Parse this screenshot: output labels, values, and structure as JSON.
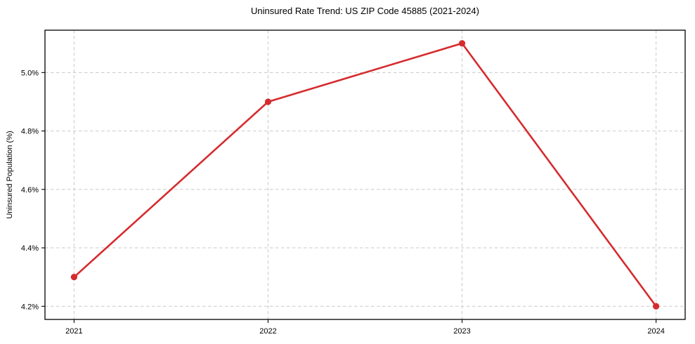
{
  "chart_data": {
    "type": "line",
    "title": "Uninsured Rate Trend: US ZIP Code 45885 (2021-2024)",
    "xlabel": "",
    "ylabel": "Uninsured Population (%)",
    "x": [
      2021,
      2022,
      2023,
      2024
    ],
    "values": [
      4.3,
      4.9,
      5.1,
      4.2
    ],
    "xticks": [
      2021,
      2022,
      2023,
      2024
    ],
    "xtick_labels": [
      "2021",
      "2022",
      "2023",
      "2024"
    ],
    "yticks": [
      4.2,
      4.4,
      4.6,
      4.8,
      5.0
    ],
    "ytick_labels": [
      "4.2%",
      "4.4%",
      "4.6%",
      "4.8%",
      "5.0%"
    ],
    "xlim": [
      2020.85,
      2024.15
    ],
    "ylim": [
      4.155,
      5.145
    ],
    "grid": true,
    "grid_style": "dashed",
    "legend": false,
    "line_color": "#d62b2e",
    "marker": "circle",
    "grid_color": "#c9c9c9",
    "axis_color": "#000000",
    "background": "#ffffff"
  }
}
